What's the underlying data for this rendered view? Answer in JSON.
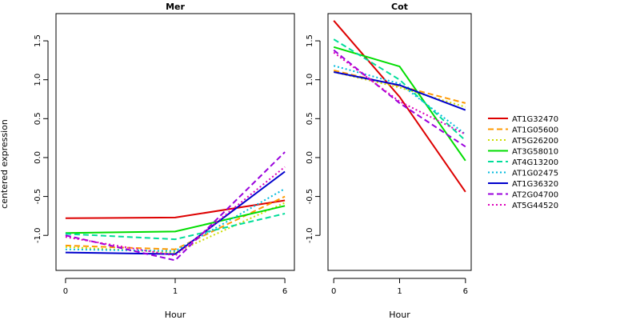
{
  "figure": {
    "ylabel": "centered expression"
  },
  "chart_data": [
    {
      "type": "line",
      "title": "Mer",
      "xlabel": "Hour",
      "ylabel": "centered expression",
      "x_categories": [
        "0",
        "1",
        "6"
      ],
      "ylim": [
        -1.45,
        1.85
      ],
      "yticks": [
        "-1.0",
        "-0.5",
        "0.0",
        "0.5",
        "1.0",
        "1.5"
      ],
      "ytick_values": [
        -1.0,
        -0.5,
        0.0,
        0.5,
        1.0,
        1.5
      ],
      "grid": false,
      "series": [
        {
          "name": "AT1G32470",
          "color": "#dd0000",
          "dash": "solid",
          "values": [
            -0.78,
            -0.77,
            -0.55
          ]
        },
        {
          "name": "AT1G05600",
          "color": "#ff9900",
          "dash": "dashed",
          "values": [
            -1.13,
            -1.18,
            -0.5
          ]
        },
        {
          "name": "AT5G26200",
          "color": "#ccdd00",
          "dash": "dotted",
          "values": [
            -1.15,
            -1.22,
            -0.58
          ]
        },
        {
          "name": "AT3G58010",
          "color": "#00dd00",
          "dash": "solid",
          "values": [
            -0.97,
            -0.95,
            -0.62
          ]
        },
        {
          "name": "AT4G13200",
          "color": "#00dd99",
          "dash": "dashed",
          "values": [
            -0.98,
            -1.05,
            -0.72
          ]
        },
        {
          "name": "AT1G02475",
          "color": "#00bbdd",
          "dash": "dotted",
          "values": [
            -1.18,
            -1.2,
            -0.4
          ]
        },
        {
          "name": "AT1G36320",
          "color": "#0000cc",
          "dash": "solid",
          "values": [
            -1.22,
            -1.24,
            -0.18
          ]
        },
        {
          "name": "AT2G04700",
          "color": "#9900dd",
          "dash": "dashed",
          "values": [
            -1.0,
            -1.32,
            0.07
          ]
        },
        {
          "name": "AT5G44520",
          "color": "#dd00bb",
          "dash": "dotted",
          "values": [
            -1.02,
            -1.26,
            -0.12
          ]
        }
      ]
    },
    {
      "type": "line",
      "title": "Cot",
      "xlabel": "Hour",
      "x_categories": [
        "0",
        "1",
        "6"
      ],
      "ylim": [
        -1.45,
        1.85
      ],
      "yticks": [
        "-1.0",
        "-0.5",
        "0.0",
        "0.5",
        "1.0",
        "1.5"
      ],
      "ytick_values": [
        -1.0,
        -0.5,
        0.0,
        0.5,
        1.0,
        1.5
      ],
      "grid": false,
      "series": [
        {
          "name": "AT1G32470",
          "color": "#dd0000",
          "dash": "solid",
          "values": [
            1.76,
            0.78,
            -0.44
          ]
        },
        {
          "name": "AT1G05600",
          "color": "#ff9900",
          "dash": "dashed",
          "values": [
            1.12,
            0.92,
            0.7
          ]
        },
        {
          "name": "AT5G26200",
          "color": "#ccdd00",
          "dash": "dotted",
          "values": [
            1.1,
            0.9,
            0.65
          ]
        },
        {
          "name": "AT3G58010",
          "color": "#00dd00",
          "dash": "solid",
          "values": [
            1.42,
            1.17,
            -0.04
          ]
        },
        {
          "name": "AT4G13200",
          "color": "#00dd99",
          "dash": "dashed",
          "values": [
            1.52,
            1.0,
            0.22
          ]
        },
        {
          "name": "AT1G02475",
          "color": "#00bbdd",
          "dash": "dotted",
          "values": [
            1.18,
            0.95,
            0.3
          ]
        },
        {
          "name": "AT1G36320",
          "color": "#0000cc",
          "dash": "solid",
          "values": [
            1.1,
            0.93,
            0.61
          ]
        },
        {
          "name": "AT2G04700",
          "color": "#9900dd",
          "dash": "dashed",
          "values": [
            1.38,
            0.7,
            0.14
          ]
        },
        {
          "name": "AT5G44520",
          "color": "#dd00bb",
          "dash": "dotted",
          "values": [
            1.35,
            0.72,
            0.3
          ]
        }
      ]
    }
  ],
  "legend": {
    "placement": "right",
    "entries": [
      {
        "label": "AT1G32470",
        "color": "#dd0000",
        "dash": "solid"
      },
      {
        "label": "AT1G05600",
        "color": "#ff9900",
        "dash": "dashed"
      },
      {
        "label": "AT5G26200",
        "color": "#ccdd00",
        "dash": "dotted"
      },
      {
        "label": "AT3G58010",
        "color": "#00dd00",
        "dash": "solid"
      },
      {
        "label": "AT4G13200",
        "color": "#00dd99",
        "dash": "dashed"
      },
      {
        "label": "AT1G02475",
        "color": "#00bbdd",
        "dash": "dotted"
      },
      {
        "label": "AT1G36320",
        "color": "#0000cc",
        "dash": "solid"
      },
      {
        "label": "AT2G04700",
        "color": "#9900dd",
        "dash": "dashed"
      },
      {
        "label": "AT5G44520",
        "color": "#dd00bb",
        "dash": "dotted"
      }
    ]
  }
}
